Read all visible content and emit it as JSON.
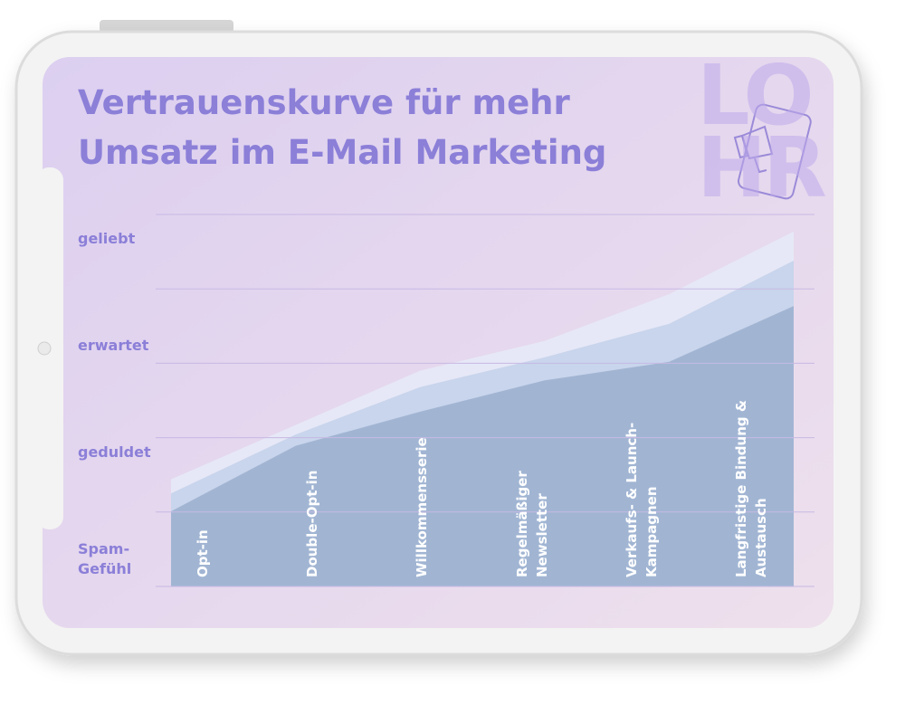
{
  "chart_data": {
    "type": "stacked_area",
    "title": "Vertrauenskurve für mehr\nUmsatz im E-Mail Marketing",
    "logo": [
      "LO",
      "HR"
    ],
    "categories": [
      "Opt-in",
      "Double-Opt-in",
      "Willkommensserie",
      "Regelmäßiger\nNewsletter",
      "Verkaufs- & Launch-\nKampagnen",
      "Langfristige Bindung &\nAustausch"
    ],
    "series": [
      {
        "color": "#a1b5d3",
        "values": [
          1.01,
          1.89,
          2.35,
          2.77,
          3.02,
          3.77
        ]
      },
      {
        "color": "#c8d5ec",
        "values": [
          0.24,
          0.15,
          0.33,
          0.31,
          0.51,
          0.61
        ]
      },
      {
        "color": "#e6e8f7",
        "values": [
          0.19,
          0.13,
          0.22,
          0.22,
          0.4,
          0.39
        ]
      }
    ],
    "ylim": [
      0,
      5
    ],
    "grid_lines": [
      0,
      1,
      2,
      3,
      4,
      5
    ],
    "yticks": [
      {
        "value": 0.36,
        "label": "Spam-\nGefühl"
      },
      {
        "value": 1.8,
        "label": "geduldet"
      },
      {
        "value": 3.24,
        "label": "erwartet"
      },
      {
        "value": 4.67,
        "label": "geliebt"
      }
    ]
  }
}
